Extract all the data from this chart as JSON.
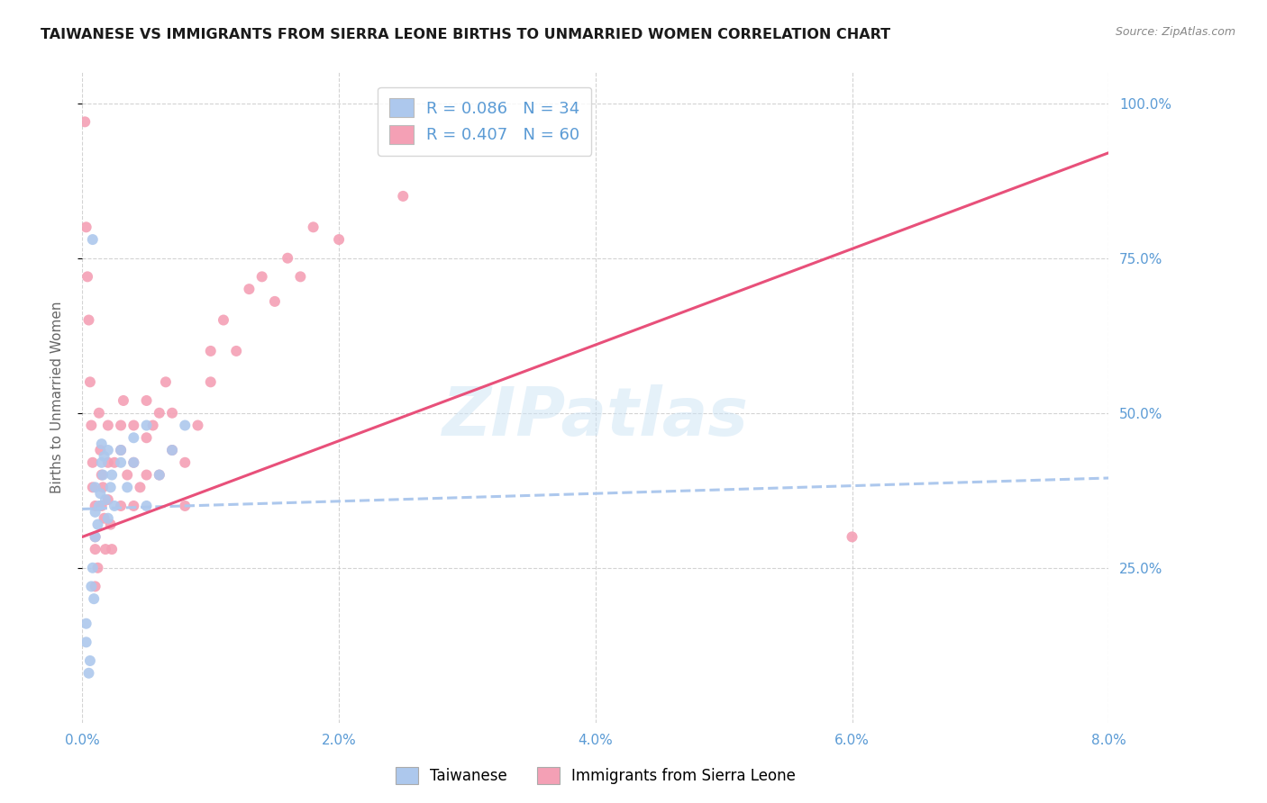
{
  "title": "TAIWANESE VS IMMIGRANTS FROM SIERRA LEONE BIRTHS TO UNMARRIED WOMEN CORRELATION CHART",
  "source": "Source: ZipAtlas.com",
  "ylabel": "Births to Unmarried Women",
  "xmin": 0.0,
  "xmax": 0.08,
  "ymin": 0.0,
  "ymax": 1.05,
  "yticks": [
    0.25,
    0.5,
    0.75,
    1.0
  ],
  "xticks": [
    0.0,
    0.02,
    0.04,
    0.06,
    0.08
  ],
  "title_color": "#222222",
  "axis_color": "#5b9bd5",
  "grid_color": "#c8c8c8",
  "watermark": "ZIPatlas",
  "series": [
    {
      "label": "Taiwanese",
      "R": 0.086,
      "N": 34,
      "color": "#adc8ed",
      "trendline_color": "#adc8ed",
      "trendline_style": "--",
      "x": [
        0.0003,
        0.0003,
        0.0005,
        0.0006,
        0.0007,
        0.0008,
        0.0009,
        0.001,
        0.001,
        0.001,
        0.0012,
        0.0013,
        0.0014,
        0.0015,
        0.0015,
        0.0016,
        0.0017,
        0.0018,
        0.002,
        0.002,
        0.0022,
        0.0023,
        0.0025,
        0.003,
        0.003,
        0.0035,
        0.004,
        0.004,
        0.005,
        0.005,
        0.006,
        0.007,
        0.008,
        0.0008
      ],
      "y": [
        0.13,
        0.16,
        0.08,
        0.1,
        0.22,
        0.25,
        0.2,
        0.3,
        0.34,
        0.38,
        0.32,
        0.35,
        0.37,
        0.42,
        0.45,
        0.4,
        0.43,
        0.36,
        0.33,
        0.44,
        0.38,
        0.4,
        0.35,
        0.42,
        0.44,
        0.38,
        0.46,
        0.42,
        0.48,
        0.35,
        0.4,
        0.44,
        0.48,
        0.78
      ]
    },
    {
      "label": "Immigrants from Sierra Leone",
      "R": 0.407,
      "N": 60,
      "color": "#f4a0b5",
      "trendline_color": "#e8507a",
      "trendline_style": "-",
      "x": [
        0.0002,
        0.0003,
        0.0004,
        0.0005,
        0.0006,
        0.0007,
        0.0008,
        0.0008,
        0.001,
        0.001,
        0.001,
        0.0012,
        0.0013,
        0.0014,
        0.0015,
        0.0015,
        0.0016,
        0.0017,
        0.0018,
        0.002,
        0.002,
        0.002,
        0.0022,
        0.0023,
        0.0025,
        0.003,
        0.003,
        0.003,
        0.0032,
        0.0035,
        0.004,
        0.004,
        0.004,
        0.0045,
        0.005,
        0.005,
        0.005,
        0.0055,
        0.006,
        0.006,
        0.0065,
        0.007,
        0.007,
        0.008,
        0.008,
        0.009,
        0.01,
        0.01,
        0.011,
        0.012,
        0.013,
        0.014,
        0.015,
        0.016,
        0.017,
        0.018,
        0.02,
        0.025,
        0.06,
        0.001
      ],
      "y": [
        0.97,
        0.8,
        0.72,
        0.65,
        0.55,
        0.48,
        0.42,
        0.38,
        0.35,
        0.3,
        0.28,
        0.25,
        0.5,
        0.44,
        0.4,
        0.35,
        0.38,
        0.33,
        0.28,
        0.48,
        0.42,
        0.36,
        0.32,
        0.28,
        0.42,
        0.35,
        0.48,
        0.44,
        0.52,
        0.4,
        0.35,
        0.42,
        0.48,
        0.38,
        0.4,
        0.52,
        0.46,
        0.48,
        0.4,
        0.5,
        0.55,
        0.44,
        0.5,
        0.35,
        0.42,
        0.48,
        0.55,
        0.6,
        0.65,
        0.6,
        0.7,
        0.72,
        0.68,
        0.75,
        0.72,
        0.8,
        0.78,
        0.85,
        0.3,
        0.22
      ]
    }
  ]
}
